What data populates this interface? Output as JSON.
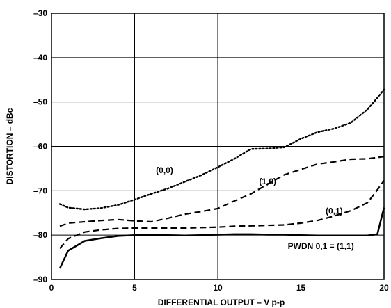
{
  "chart_data": {
    "type": "line",
    "title": "",
    "xlabel": "DIFFERENTIAL OUTPUT – V p-p",
    "ylabel": "DISTORTION – dBc",
    "xlim": [
      0,
      20
    ],
    "ylim": [
      -90,
      -30
    ],
    "xticks": [
      0,
      5,
      10,
      15,
      20
    ],
    "yticks": [
      -30,
      -40,
      -50,
      -60,
      -70,
      -80,
      -90
    ],
    "xtick_labels": [
      "0",
      "5",
      "10",
      "15",
      "20"
    ],
    "ytick_labels": [
      "–30",
      "–40",
      "–50",
      "–60",
      "–70",
      "–80",
      "–90"
    ],
    "grid": true,
    "legend": "none",
    "series": [
      {
        "name": "(0,0)",
        "style": "dotted",
        "x": [
          0.5,
          1,
          2,
          3,
          4,
          5,
          6,
          7,
          8,
          9,
          10,
          11,
          12,
          13,
          14,
          15,
          16,
          17,
          18,
          19,
          19.5,
          20
        ],
        "y": [
          -73,
          -73.8,
          -74.2,
          -73.9,
          -73.2,
          -72,
          -70.7,
          -69.5,
          -68,
          -66.5,
          -64.7,
          -62.8,
          -60.6,
          -60.5,
          -60.2,
          -58.3,
          -56.8,
          -56,
          -54.7,
          -51.7,
          -49.5,
          -47.2
        ]
      },
      {
        "name": "(1,0)",
        "style": "dashed",
        "x": [
          0.5,
          1,
          2,
          3,
          4,
          5,
          6,
          7,
          8,
          9,
          10,
          11,
          12,
          13,
          14,
          15,
          16,
          17,
          18,
          19,
          20
        ],
        "y": [
          -78,
          -77.3,
          -77,
          -76.7,
          -76.5,
          -76.8,
          -77,
          -76.2,
          -75.3,
          -74.7,
          -74,
          -72.3,
          -70.7,
          -68.5,
          -66.4,
          -65.2,
          -64,
          -63.5,
          -62.9,
          -62.8,
          -62.3
        ]
      },
      {
        "name": "(0,1)",
        "style": "dashed",
        "x": [
          0.5,
          1,
          2,
          3,
          4,
          5,
          6,
          7,
          8,
          9,
          10,
          11,
          12,
          13,
          14,
          15,
          16,
          17,
          18,
          19,
          19.5,
          20
        ],
        "y": [
          -83,
          -80.8,
          -79.3,
          -78.8,
          -78.5,
          -78.4,
          -78.4,
          -78.4,
          -78.4,
          -78.3,
          -78.2,
          -78,
          -77.9,
          -77.8,
          -77.7,
          -77.3,
          -76.7,
          -75.7,
          -74.5,
          -72.7,
          -70.3,
          -67.7
        ]
      },
      {
        "name": "PWDN 0,1 = (1,1)",
        "style": "solid",
        "x": [
          0.5,
          1,
          2,
          3,
          4,
          5,
          6,
          7,
          8,
          9,
          10,
          11,
          12,
          13,
          14,
          15,
          16,
          17,
          18,
          19,
          19.6,
          20
        ],
        "y": [
          -87.5,
          -83.5,
          -81.3,
          -80.7,
          -80.2,
          -80,
          -80,
          -80,
          -80.1,
          -80,
          -79.9,
          -79.8,
          -79.8,
          -79.9,
          -79.9,
          -80,
          -80.1,
          -80.1,
          -80.1,
          -80.1,
          -79.8,
          -73.8
        ]
      }
    ],
    "annotations": [
      {
        "text": "(0,0)",
        "x": 6.8,
        "y": -66
      },
      {
        "text": "(1,0)",
        "x": 13.0,
        "y": -68.5
      },
      {
        "text": "(0,1)",
        "x": 17.0,
        "y": -75.2
      },
      {
        "text": "PWDN 0,1 = (1,1)",
        "x": 16.2,
        "y": -83.1
      }
    ]
  }
}
